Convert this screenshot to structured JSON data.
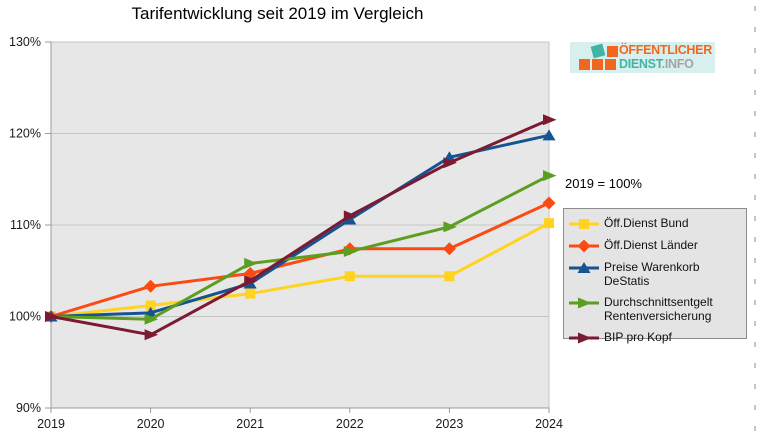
{
  "title": "Tarifentwicklung seit 2019 im Vergleich",
  "annotation": "2019 = 100%",
  "logo": {
    "line1": "ÖFFENTLICHER",
    "line2_primary": "DIENST",
    "line2_secondary": ".INFO",
    "colors": {
      "orange": "#F2671F",
      "teal": "#43B3A5",
      "gray": "#A3A3A3",
      "background": "#D7F0EE"
    }
  },
  "chart_data": {
    "type": "line",
    "title": "Tarifentwicklung seit 2019 im Vergleich",
    "categories": [
      "2019",
      "2020",
      "2021",
      "2022",
      "2023",
      "2024"
    ],
    "ylim": [
      90,
      130
    ],
    "y_ticks": [
      {
        "label": "130%",
        "value": 130
      },
      {
        "label": "120%",
        "value": 120
      },
      {
        "label": "110%",
        "value": 110
      },
      {
        "label": "100%",
        "value": 100
      },
      {
        "label": "90%",
        "value": 90
      }
    ],
    "grid": true,
    "legend_position": "right",
    "plot_background": "#E7E7E7",
    "annotation": "2019 = 100%",
    "series": [
      {
        "name": "Öff.Dienst Bund",
        "color": "#FFD320",
        "marker": "square",
        "values": [
          100,
          101.2,
          102.5,
          104.4,
          104.4,
          110.2
        ]
      },
      {
        "name": "Öff.Dienst Länder",
        "color": "#FB4A14",
        "marker": "diamond",
        "values": [
          100,
          103.3,
          104.7,
          107.4,
          107.4,
          112.4
        ]
      },
      {
        "name": "Preise Warenkorb DeStatis",
        "color": "#155391",
        "marker": "triangle-up",
        "values": [
          100,
          100.4,
          103.6,
          110.6,
          117.4,
          119.8
        ]
      },
      {
        "name": "Durchschnittsentgelt Rentenversicherung",
        "color": "#5B9E22",
        "marker": "triangle-right",
        "values": [
          100,
          99.7,
          105.8,
          107.1,
          109.8,
          115.4
        ]
      },
      {
        "name": "BIP pro Kopf",
        "color": "#7B1B33",
        "marker": "triangle-right",
        "values": [
          100,
          98.0,
          103.9,
          111.0,
          116.8,
          121.5
        ]
      }
    ]
  }
}
